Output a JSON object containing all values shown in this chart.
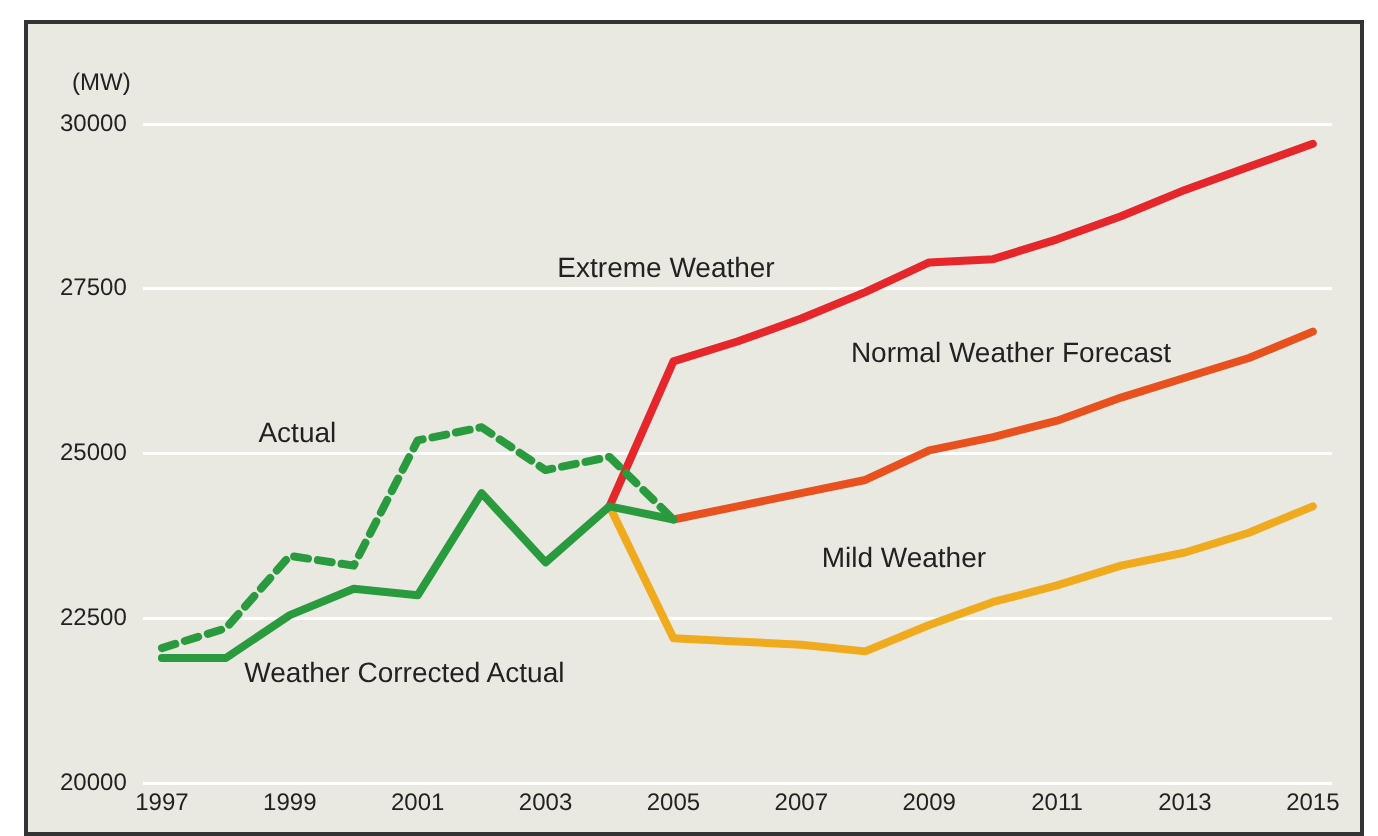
{
  "chart_data": {
    "type": "line",
    "ylabel": "(MW)",
    "xlim": [
      1996.7,
      2015.3
    ],
    "xticks": [
      1997,
      1999,
      2001,
      2003,
      2005,
      2007,
      2009,
      2011,
      2013,
      2015
    ],
    "ylim": [
      20000,
      30000
    ],
    "yticks": [
      20000,
      22500,
      25000,
      27500,
      30000
    ],
    "grid": "y",
    "legend": false,
    "marker": "none",
    "series": [
      {
        "name": "Actual",
        "color": "#2a9a3e",
        "line_style": "dashed",
        "x": [
          1997,
          1998,
          1999,
          2000,
          2001,
          2002,
          2003,
          2004,
          2005
        ],
        "values": [
          22050,
          22350,
          23450,
          23300,
          25200,
          25400,
          24750,
          24950,
          24000
        ]
      },
      {
        "name": "Weather Corrected Actual",
        "color": "#2a9a3e",
        "line_style": "solid",
        "x": [
          1997,
          1998,
          1999,
          2000,
          2001,
          2002,
          2003,
          2004,
          2005
        ],
        "values": [
          21900,
          21900,
          22550,
          22950,
          22850,
          24400,
          23350,
          24200,
          24000
        ]
      },
      {
        "name": "Extreme Weather",
        "color": "#e5262a",
        "line_style": "solid",
        "x": [
          2004,
          2005,
          2006,
          2007,
          2008,
          2009,
          2010,
          2011,
          2012,
          2013,
          2014,
          2015
        ],
        "values": [
          24200,
          26400,
          26700,
          27050,
          27450,
          27900,
          27950,
          28250,
          28600,
          29000,
          29350,
          29700
        ]
      },
      {
        "name": "Normal Weather Forecast",
        "color": "#e8501e",
        "line_style": "solid",
        "x": [
          2005,
          2006,
          2007,
          2008,
          2009,
          2010,
          2011,
          2012,
          2013,
          2014,
          2015
        ],
        "values": [
          24000,
          24200,
          24400,
          24600,
          25050,
          25250,
          25500,
          25850,
          26150,
          26450,
          26850
        ]
      },
      {
        "name": "Mild Weather",
        "color": "#f0aa1e",
        "line_style": "solid",
        "x": [
          2004,
          2005,
          2006,
          2007,
          2008,
          2009,
          2010,
          2011,
          2012,
          2013,
          2014,
          2015
        ],
        "values": [
          24200,
          22200,
          22150,
          22100,
          22000,
          22400,
          22750,
          23000,
          23300,
          23500,
          23800,
          24200
        ]
      }
    ]
  }
}
